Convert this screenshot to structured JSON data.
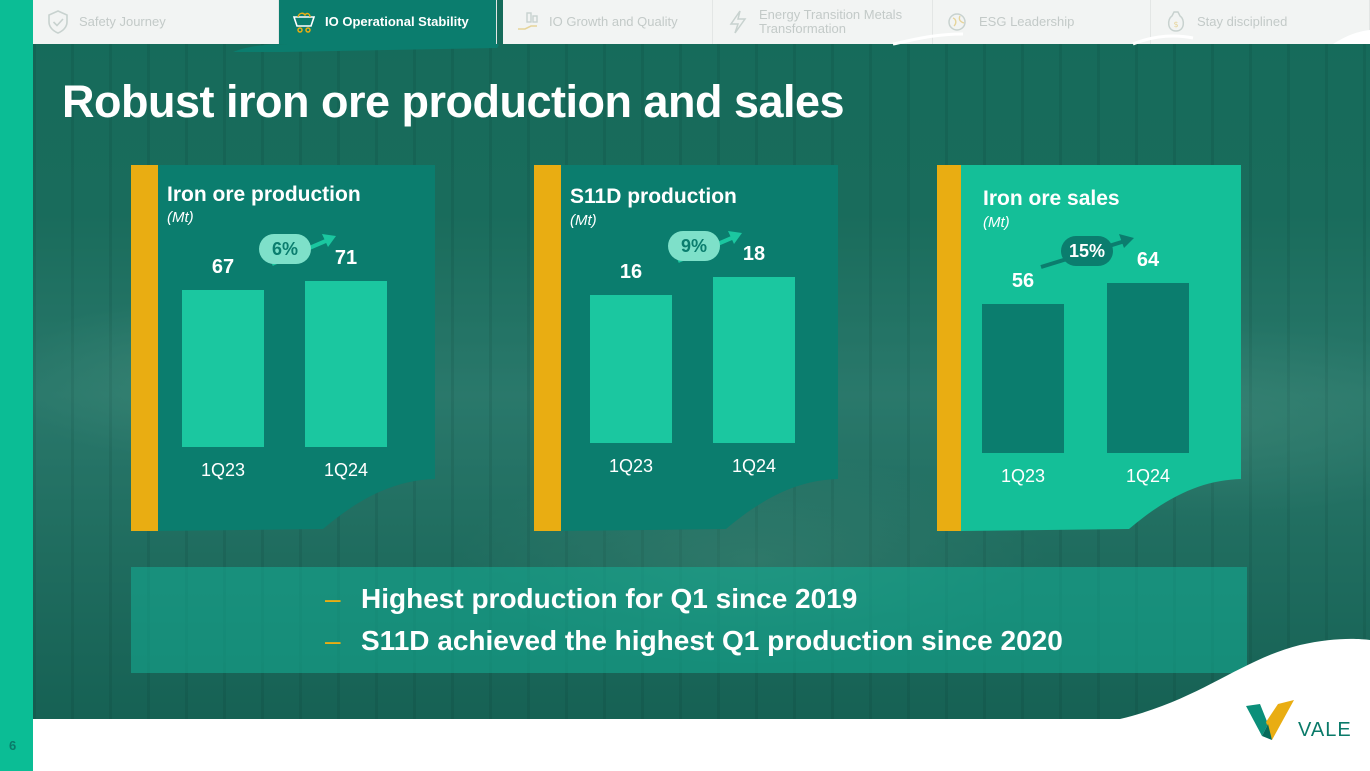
{
  "page_number": "6",
  "nav": {
    "tabs": [
      {
        "label": "Safety Journey",
        "icon": "shield-check-icon",
        "active": false
      },
      {
        "label": "IO Operational Stability",
        "icon": "mining-cart-icon",
        "active": true
      },
      {
        "label": "IO Growth and Quality",
        "icon": "growth-hand-icon",
        "active": false
      },
      {
        "label": "Energy Transition Metals Transformation",
        "icon": "lightning-icon",
        "active": false
      },
      {
        "label": "ESG Leadership",
        "icon": "globe-leaf-icon",
        "active": false
      },
      {
        "label": "Stay disciplined",
        "icon": "money-bag-icon",
        "active": false
      }
    ]
  },
  "title": "Robust iron ore production and sales",
  "chart_data": [
    {
      "type": "bar",
      "title": "Iron ore production",
      "unit": "(Mt)",
      "categories": [
        "1Q23",
        "1Q24"
      ],
      "values": [
        67,
        71
      ],
      "change": "6%"
    },
    {
      "type": "bar",
      "title": "S11D production",
      "unit": "(Mt)",
      "categories": [
        "1Q23",
        "1Q24"
      ],
      "values": [
        16,
        18
      ],
      "change": "9%"
    },
    {
      "type": "bar",
      "title": "Iron ore sales",
      "unit": "(Mt)",
      "categories": [
        "1Q23",
        "1Q24"
      ],
      "values": [
        56,
        64
      ],
      "change": "15%"
    }
  ],
  "notes": {
    "dash": "–",
    "items": [
      "Highest production for Q1 since 2019",
      "S11D achieved the highest Q1 production since 2020"
    ]
  },
  "logo": {
    "text": "VALE"
  },
  "colors": {
    "accent_yellow": "#e9ad12",
    "teal_dark": "#0b7d6e",
    "teal_light": "#0bbd95",
    "brand_green": "#0a7a69"
  }
}
